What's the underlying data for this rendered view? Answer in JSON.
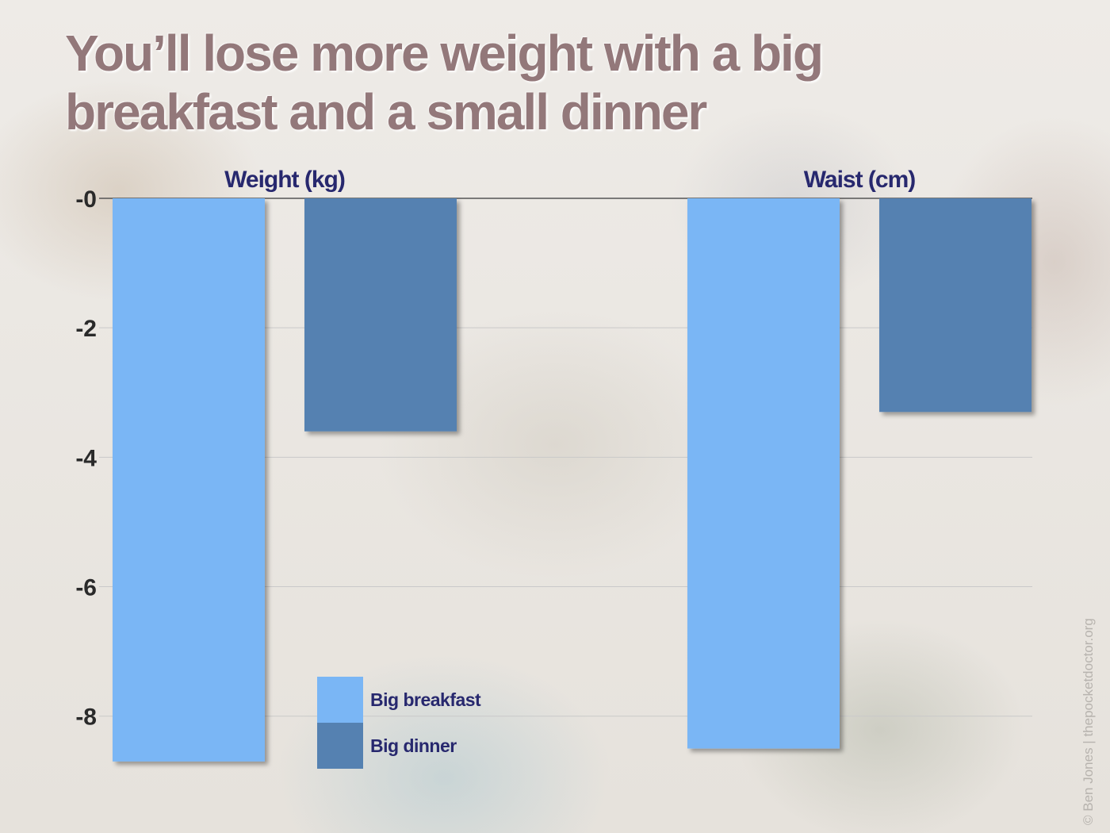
{
  "title": "You’ll lose more weight with a big breakfast and a small dinner",
  "credit": "© Ben Jones | thepocketdoctor.org",
  "colors": {
    "big_breakfast": "#7ab6f5",
    "big_dinner": "#5581b1",
    "title": "#93787a",
    "group_label": "#27286e"
  },
  "chart_data": {
    "type": "bar",
    "categories": [
      "Weight (kg)",
      "Waist (cm)"
    ],
    "series": [
      {
        "name": "Big breakfast",
        "values": [
          -8.7,
          -8.5
        ]
      },
      {
        "name": "Big dinner",
        "values": [
          -3.6,
          -3.3
        ]
      }
    ],
    "title": "You’ll lose more weight with a big breakfast and a small dinner",
    "xlabel": "",
    "ylabel": "",
    "ylim": [
      -8.8,
      0
    ],
    "yticks": [
      0,
      -2,
      -4,
      -6,
      -8
    ],
    "ytick_labels": [
      "-0",
      "-2",
      "-4",
      "-6",
      "-8"
    ],
    "grid": true,
    "legend_position": "bottom-center"
  }
}
